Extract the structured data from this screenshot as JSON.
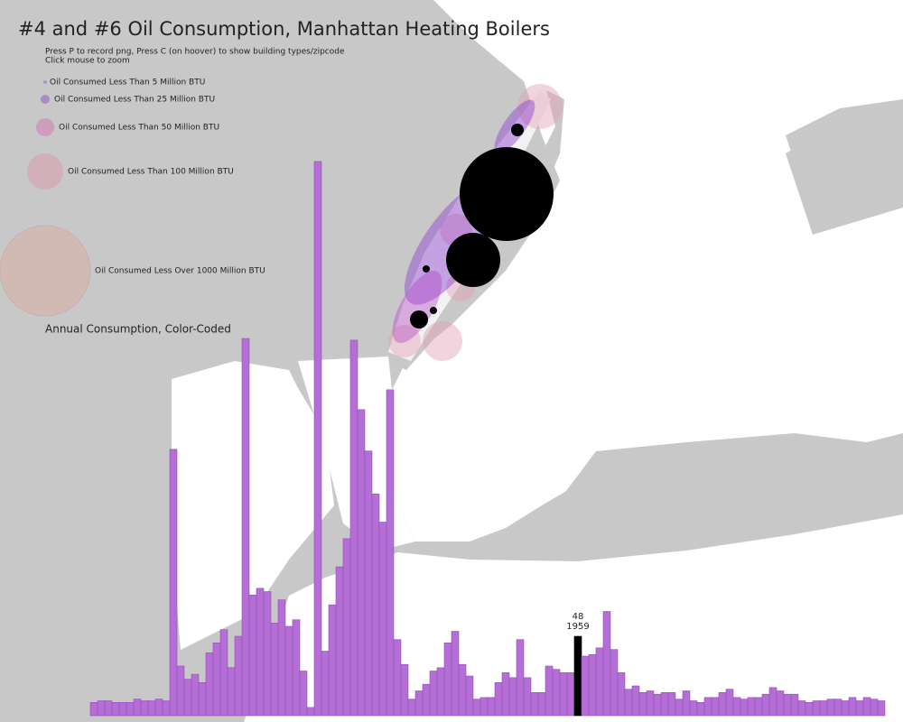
{
  "title": "#4 and #6 Oil Consumption, Manhattan Heating Boilers",
  "instructions": [
    "Press P to record png, Press C (on hoover) to show building types/zipcode",
    "Click mouse to zoom"
  ],
  "legend": [
    "Oil Consumed Less Than 5 Million BTU",
    "Oil Consumed Less Than 25 Million BTU",
    "Oil Consumed Less Than 50 Million BTU",
    "Oil Consumed Less Than 100 Million BTU",
    "Oil Consumed Less Over 1000 Million BTU"
  ],
  "legend_title": "Annual Consumption, Color-Coded",
  "chart_data": {
    "type": "bar",
    "color": "#b56ed6",
    "highlight_color": "#000000",
    "categories": [
      null,
      null,
      null,
      null,
      null,
      null,
      null,
      null,
      null,
      null,
      null,
      null,
      null,
      null,
      null,
      null,
      null,
      null,
      null,
      null,
      null,
      null,
      null,
      null,
      null,
      null,
      null,
      null,
      null,
      null,
      null,
      null,
      null,
      null,
      null,
      null,
      null,
      null,
      null,
      null,
      null,
      null,
      null,
      null,
      null,
      null,
      null,
      null,
      null,
      null,
      null,
      null,
      null,
      null,
      null,
      null,
      null,
      null,
      null,
      null,
      null,
      null,
      null,
      null,
      null,
      null,
      null,
      "1959",
      null,
      null,
      null,
      null,
      null,
      null,
      null,
      null,
      null,
      null,
      null,
      null,
      null,
      null,
      null,
      null,
      null,
      null,
      null,
      null,
      null,
      null,
      null,
      null,
      null,
      null,
      null,
      null,
      null,
      null,
      null,
      null,
      null,
      null,
      null,
      null,
      null,
      null,
      null,
      null,
      null,
      null
    ],
    "values": [
      8,
      9,
      9,
      8,
      8,
      8,
      10,
      9,
      9,
      10,
      9,
      161,
      30,
      22,
      25,
      20,
      38,
      44,
      52,
      29,
      48,
      228,
      73,
      77,
      75,
      56,
      70,
      54,
      58,
      27,
      5,
      335,
      39,
      67,
      90,
      107,
      227,
      185,
      160,
      134,
      117,
      197,
      46,
      31,
      10,
      15,
      19,
      27,
      29,
      44,
      51,
      31,
      24,
      10,
      11,
      11,
      20,
      26,
      23,
      46,
      23,
      14,
      14,
      30,
      28,
      26,
      26,
      48,
      36,
      37,
      41,
      63,
      40,
      26,
      16,
      18,
      14,
      15,
      13,
      14,
      14,
      10,
      15,
      9,
      8,
      11,
      11,
      14,
      16,
      11,
      10,
      11,
      11,
      13,
      17,
      15,
      13,
      13,
      9,
      8,
      9,
      9,
      10,
      10,
      9,
      11,
      9,
      11,
      10,
      9
    ]
  }
}
